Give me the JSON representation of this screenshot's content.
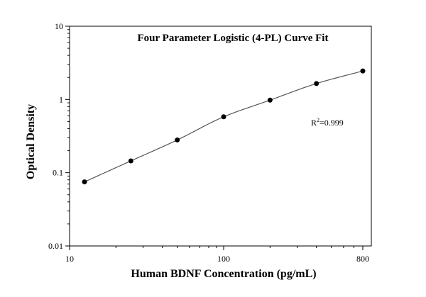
{
  "chart_data": {
    "type": "scatter",
    "title": "Four Parameter Logistic (4-PL) Curve Fit",
    "xlabel": "Human BDNF Concentration (pg/mL)",
    "ylabel": "Optical Density",
    "x_scale": "log",
    "y_scale": "log",
    "xlim": [
      10,
      800
    ],
    "ylim": [
      0.01,
      10
    ],
    "x_ticks": [
      {
        "value": 10,
        "label": "10"
      },
      {
        "value": 100,
        "label": "100"
      },
      {
        "value": 800,
        "label": "800"
      }
    ],
    "y_ticks": [
      {
        "value": 0.01,
        "label": "0.01"
      },
      {
        "value": 0.1,
        "label": "0.1"
      },
      {
        "value": 1,
        "label": "1"
      },
      {
        "value": 10,
        "label": "10"
      }
    ],
    "series": [
      {
        "x": [
          12.5,
          25,
          50,
          100,
          200,
          400,
          800
        ],
        "y": [
          0.075,
          0.145,
          0.28,
          0.58,
          0.98,
          1.65,
          2.45
        ]
      }
    ],
    "fit_curve": {
      "type": "4PL",
      "x_range": [
        12.5,
        800
      ]
    },
    "annotation": {
      "prefix": "R",
      "superscript": "2",
      "value": "=0.999"
    },
    "grid": false,
    "legend": "none",
    "colors": {
      "points": "#000000",
      "curve": "#555555",
      "axes": "#000000"
    }
  }
}
